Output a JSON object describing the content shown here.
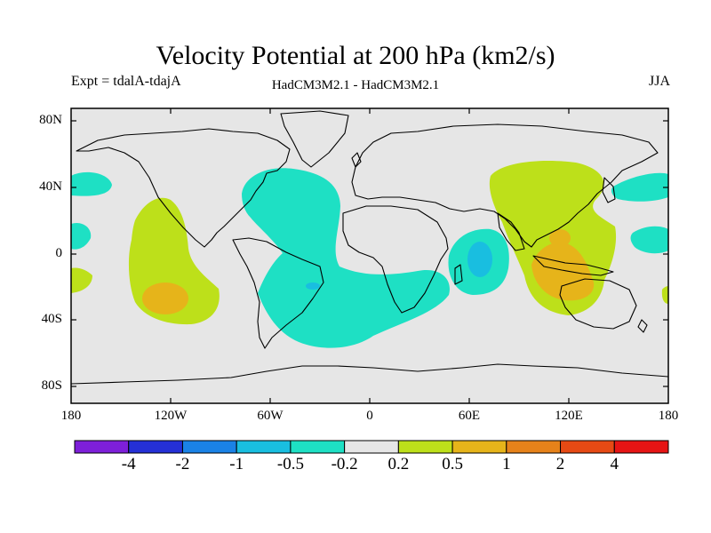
{
  "title": "Velocity Potential at 200 hPa (km2/s)",
  "subtitle_left": "Expt = tdalA-tdajA",
  "subtitle_center": "HadCM3M2.1 - HadCM3M2.1",
  "subtitle_right": "JJA",
  "lat_labels": [
    "80N",
    "40N",
    "0",
    "40S",
    "80S"
  ],
  "lon_labels": [
    "180",
    "120W",
    "60W",
    "0",
    "60E",
    "120E",
    "180"
  ],
  "colorbar": {
    "colors": [
      "#7e1fd9",
      "#2530d6",
      "#1a82e6",
      "#19bee0",
      "#1ee0c4",
      "#e6e6e6",
      "#bde01a",
      "#e6b41a",
      "#e6821a",
      "#e64a14",
      "#e61414"
    ],
    "labels": [
      "-4",
      "-2",
      "-1",
      "-0.5",
      "-0.2",
      "0.2",
      "0.5",
      "1",
      "2",
      "4"
    ]
  },
  "colors": {
    "background": "#e6e6e6",
    "neg_weak": "#1ee0c4",
    "neg_mid": "#19bee0",
    "pos_weak": "#bde01a",
    "pos_mid": "#e6b41a"
  }
}
